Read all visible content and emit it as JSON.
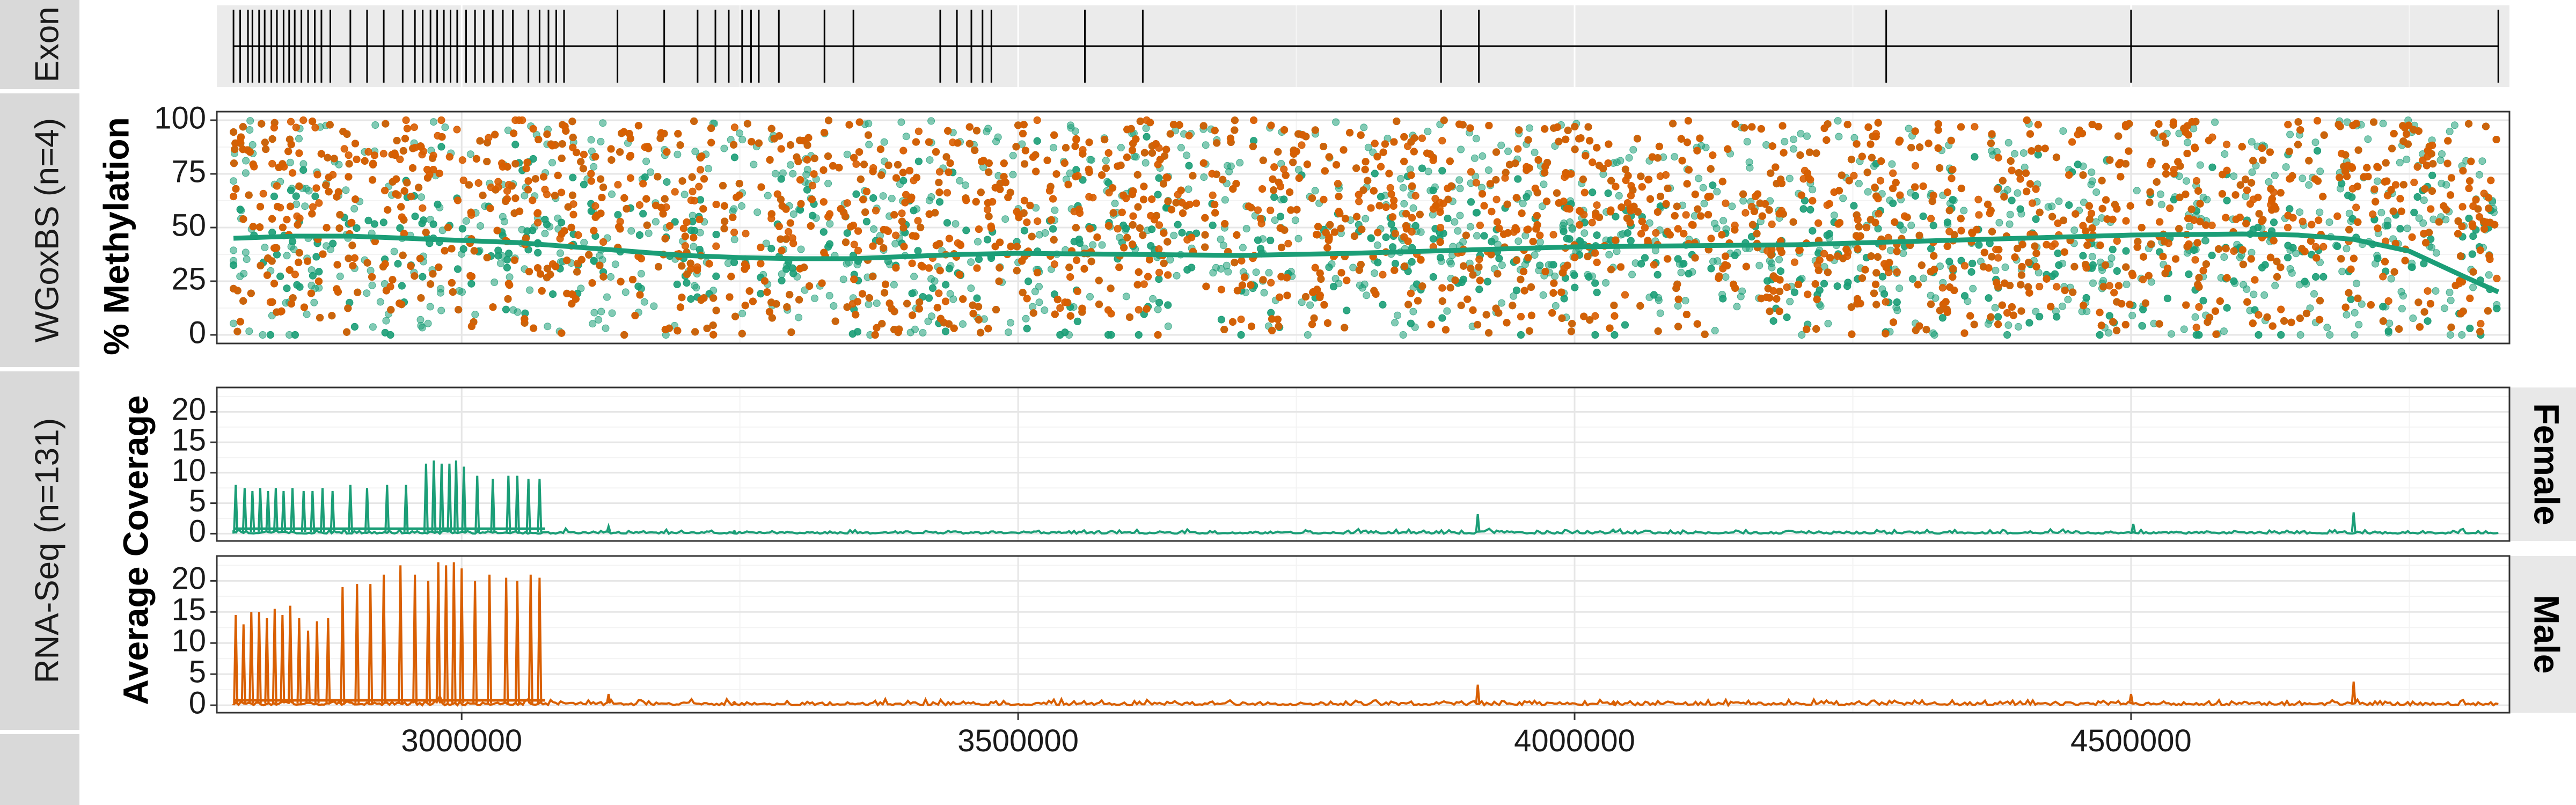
{
  "chart_data": [
    {
      "panel": "exon",
      "type": "line",
      "strip_label": "Exon",
      "x_range": [
        2780000,
        4840000
      ],
      "track": [
        2795000,
        4830000
      ],
      "exon_positions": [
        2795000,
        2801000,
        2808000,
        2812000,
        2818000,
        2823000,
        2829000,
        2834000,
        2840000,
        2845000,
        2850000,
        2856000,
        2862000,
        2868000,
        2874000,
        2882000,
        2900000,
        2915000,
        2930000,
        2947000,
        2958000,
        2965000,
        2972000,
        2978000,
        2984000,
        2990000,
        2996000,
        3004000,
        3012000,
        3020000,
        3028000,
        3037000,
        3046000,
        3060000,
        3070000,
        3078000,
        3085000,
        3092000,
        3140000,
        3182000,
        3212000,
        3228000,
        3240000,
        3252000,
        3260000,
        3267000,
        3285000,
        3326000,
        3352000,
        3430000,
        3445000,
        3458000,
        3468000,
        3476000,
        3560000,
        3612000,
        3880000,
        3914000,
        4280000,
        4500000,
        4830000
      ]
    },
    {
      "panel": "methylation",
      "type": "scatter",
      "strip_label": "WGoxBS (n=4)",
      "ylabel": "% Methylation",
      "ylim": [
        -4,
        104
      ],
      "yticks": [
        0,
        25,
        50,
        75,
        100
      ],
      "x_range": [
        2780000,
        4840000
      ],
      "series": [
        {
          "color": "#1b9e77",
          "point_count": 7000,
          "mean_pct": 38
        },
        {
          "color": "#d95f02",
          "point_count": 7000,
          "mean_pct": 52
        }
      ],
      "trend": {
        "color": "#1b9e77",
        "x": [
          2795000,
          2850000,
          2900000,
          2950000,
          3000000,
          3050000,
          3100000,
          3150000,
          3200000,
          3250000,
          3300000,
          3350000,
          3400000,
          3450000,
          3500000,
          3600000,
          3700000,
          3800000,
          3900000,
          4000000,
          4100000,
          4200000,
          4300000,
          4400000,
          4500000,
          4600000,
          4650000,
          4700000,
          4750000,
          4800000,
          4830000
        ],
        "y": [
          45,
          46,
          46,
          45,
          44,
          43,
          41,
          39,
          37,
          36,
          35.5,
          35.5,
          36.5,
          37.5,
          38,
          37.5,
          37,
          38,
          39.5,
          41,
          41.5,
          42,
          43.5,
          45,
          46.5,
          47,
          46.5,
          44.5,
          39,
          27,
          20
        ]
      }
    },
    {
      "panel": "coverage",
      "type": "line",
      "strip_label": "RNA-Seq (n=131)",
      "ylabel": "Average Coverage",
      "x_range": [
        2780000,
        4840000
      ],
      "xticks": [
        3000000,
        3500000,
        4000000,
        4500000
      ],
      "xtick_labels": [
        "3000000",
        "3500000",
        "4000000",
        "4500000"
      ],
      "yticks": [
        0,
        5,
        10,
        15,
        20
      ],
      "ylim": [
        -1.2,
        24
      ],
      "facets": [
        {
          "label": "Female",
          "color": "#1b9e77",
          "spikes": [
            [
              2797000,
              8
            ],
            [
              2805000,
              7.5
            ],
            [
              2812000,
              7
            ],
            [
              2819000,
              7.5
            ],
            [
              2826000,
              7
            ],
            [
              2833000,
              7.5
            ],
            [
              2840000,
              7
            ],
            [
              2848000,
              7.5
            ],
            [
              2858000,
              7
            ],
            [
              2866000,
              7
            ],
            [
              2875000,
              7.5
            ],
            [
              2884000,
              7
            ],
            [
              2900000,
              8
            ],
            [
              2915000,
              7.5
            ],
            [
              2933000,
              8
            ],
            [
              2950000,
              8
            ],
            [
              2968000,
              11.5
            ],
            [
              2975000,
              12
            ],
            [
              2982000,
              11.5
            ],
            [
              2989000,
              11.5
            ],
            [
              2995000,
              12
            ],
            [
              3002000,
              11
            ],
            [
              3014000,
              9.5
            ],
            [
              3028000,
              9
            ],
            [
              3042000,
              9.5
            ],
            [
              3050000,
              9.5
            ],
            [
              3060000,
              9
            ],
            [
              3070000,
              9
            ],
            [
              3132000,
              1.2
            ],
            [
              3245000,
              0.4
            ],
            [
              3913000,
              3.2
            ],
            [
              4035000,
              0.6
            ],
            [
              4502000,
              1.6
            ],
            [
              4700000,
              3.5
            ]
          ],
          "baseline": 0.25,
          "end": 4830000
        },
        {
          "label": "Male",
          "color": "#d95f02",
          "spikes": [
            [
              2797000,
              14.5
            ],
            [
              2804000,
              13
            ],
            [
              2811000,
              15
            ],
            [
              2818000,
              15
            ],
            [
              2825000,
              14
            ],
            [
              2832000,
              15.5
            ],
            [
              2839000,
              14.5
            ],
            [
              2846000,
              16
            ],
            [
              2854000,
              14
            ],
            [
              2862000,
              12
            ],
            [
              2870000,
              13.5
            ],
            [
              2880000,
              14
            ],
            [
              2893000,
              19
            ],
            [
              2906000,
              19.5
            ],
            [
              2918000,
              19.5
            ],
            [
              2930000,
              21
            ],
            [
              2945000,
              22.5
            ],
            [
              2958000,
              21
            ],
            [
              2970000,
              20
            ],
            [
              2979000,
              23
            ],
            [
              2986000,
              22.5
            ],
            [
              2993000,
              23
            ],
            [
              3000000,
              22
            ],
            [
              3012000,
              20
            ],
            [
              3025000,
              21
            ],
            [
              3040000,
              20.5
            ],
            [
              3050000,
              20
            ],
            [
              3062000,
              21
            ],
            [
              3070000,
              20.5
            ],
            [
              3132000,
              1.8
            ],
            [
              3245000,
              0.5
            ],
            [
              3913000,
              3.3
            ],
            [
              4035000,
              0.6
            ],
            [
              4500000,
              1.8
            ],
            [
              4700000,
              3.8
            ]
          ],
          "baseline": 0.35,
          "end": 4830000
        }
      ]
    }
  ]
}
